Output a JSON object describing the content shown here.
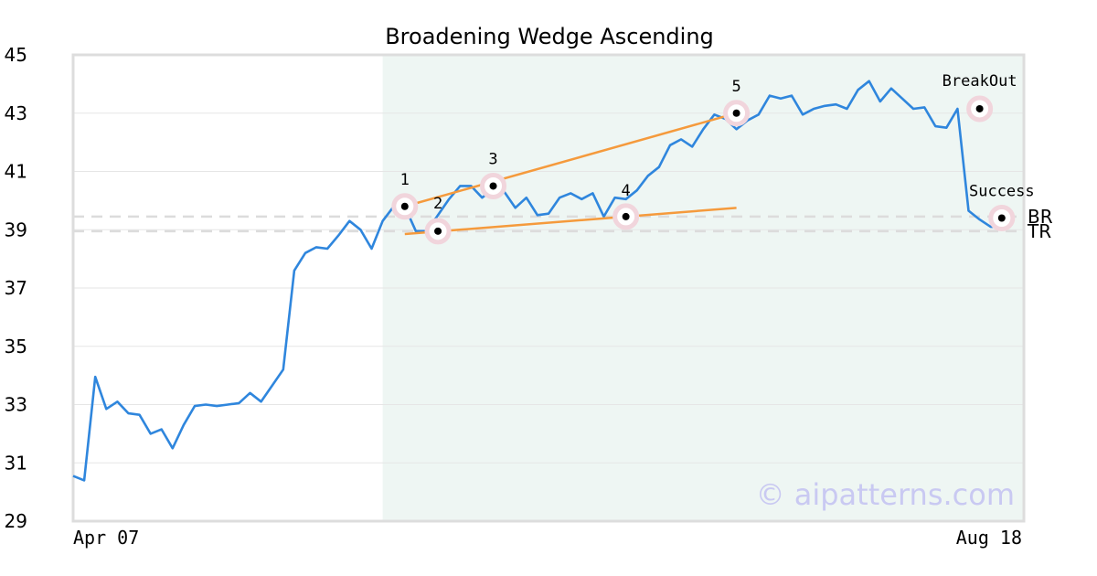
{
  "chart_data": {
    "type": "line",
    "title": "Broadening Wedge Ascending",
    "xlabel": "",
    "ylabel": "",
    "ylim": [
      29,
      45
    ],
    "yticks": [
      29,
      31,
      33,
      35,
      37,
      39,
      41,
      43,
      45
    ],
    "x_tick_labels": [
      "Apr 07",
      "Aug 18"
    ],
    "grid": true,
    "line_color": "#2f86dd",
    "pattern_line_color": "#f59a3c",
    "highlight_color": "#eef6f3",
    "marker_halo_color": "#f1d5dc",
    "series": [
      {
        "values": [
          30.55,
          30.4,
          33.95,
          32.85,
          33.1,
          32.7,
          32.65,
          32.0,
          32.15,
          31.5,
          32.3,
          32.95,
          33.0,
          32.95,
          33.0,
          33.05,
          33.4,
          33.1,
          33.65,
          34.2,
          37.6,
          38.2,
          38.4,
          38.35,
          38.8,
          39.3,
          39.0,
          38.35,
          39.3,
          39.8,
          39.8,
          38.95,
          38.95,
          39.5,
          40.05,
          40.5,
          40.5,
          40.1,
          40.4,
          40.3,
          39.75,
          40.1,
          39.5,
          39.55,
          40.1,
          40.25,
          40.05,
          40.25,
          39.45,
          40.1,
          40.05,
          40.35,
          40.85,
          41.15,
          41.9,
          42.1,
          41.85,
          42.45,
          42.95,
          42.8,
          42.45,
          42.75,
          42.95,
          43.6,
          43.5,
          43.6,
          42.95,
          43.15,
          43.25,
          43.3,
          43.15,
          43.8,
          44.1,
          43.4,
          43.85,
          43.5,
          43.15,
          43.2,
          42.55,
          42.5,
          43.15,
          39.65,
          39.35,
          39.1,
          39.1
        ]
      }
    ],
    "highlight_range": [
      28,
      86
    ],
    "reference_lines": [
      {
        "label": "BR",
        "y": 39.45
      },
      {
        "label": "TR",
        "y": 38.95
      }
    ],
    "trend_lines": [
      {
        "from": [
          30,
          39.8
        ],
        "to": [
          60,
          43.0
        ]
      },
      {
        "from": [
          30,
          38.85
        ],
        "to": [
          60,
          39.75
        ]
      }
    ],
    "points": [
      {
        "label": "1",
        "x": 30,
        "y": 39.8
      },
      {
        "label": "2",
        "x": 33,
        "y": 38.95
      },
      {
        "label": "3",
        "x": 38,
        "y": 40.5
      },
      {
        "label": "4",
        "x": 50,
        "y": 39.45
      },
      {
        "label": "5",
        "x": 60,
        "y": 43.0
      },
      {
        "label": "BreakOut",
        "x": 82,
        "y": 43.15
      },
      {
        "label": "Success",
        "x": 84,
        "y": 39.4
      }
    ],
    "x_index_range": [
      0,
      86
    ]
  },
  "watermark": "© aipatterns.com"
}
